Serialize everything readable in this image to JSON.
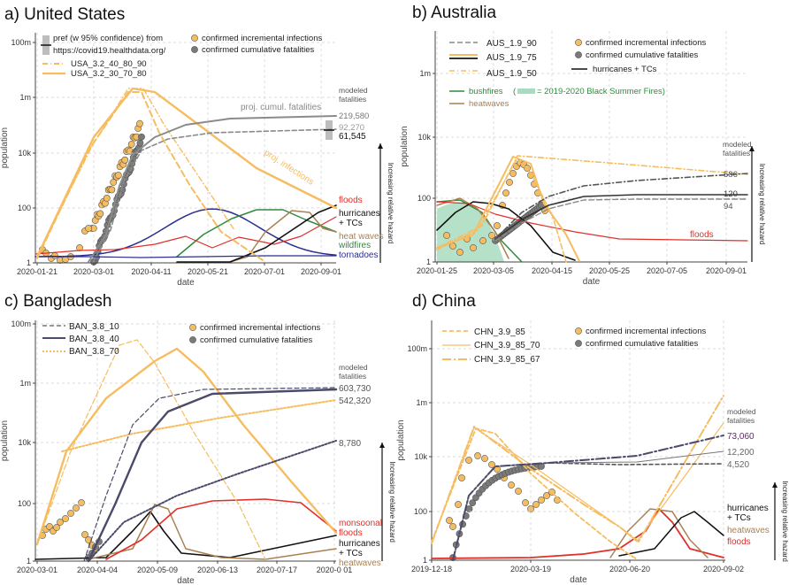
{
  "chart_data": [
    {
      "panel": "a",
      "title": "a) United States",
      "type": "line",
      "xlabel": "date",
      "ylabel": "population",
      "x_ticks": [
        "2020-01-21",
        "2020-03-01",
        "2020-04-11",
        "2020-05-21",
        "2020-07-01",
        "2020-09-01"
      ],
      "y_ticks": [
        "1",
        "100",
        "10k",
        "1m",
        "100m"
      ],
      "ylim": [
        1,
        300000000
      ],
      "grid": true,
      "log_y": true,
      "legend_left": [
        "pref (w 95% confidence) from",
        "https://covid19.healthdata.org/",
        "USA_3.2_40_80_90",
        "USA_3.2_30_70_80"
      ],
      "legend_right": [
        "confirmed incremental infections",
        "confirmed cumulative fatalities"
      ],
      "modeled_label": "modeled\nfatalities",
      "fatalities": [
        "219,580",
        "92,270",
        "61,545"
      ],
      "annotations": [
        "proj. cumul. fatalities",
        "proj. infections"
      ],
      "hazards": [
        "floods",
        "hurricanes\n+ TCs",
        "heat waves",
        "wildfires",
        "tornadoes"
      ],
      "hazard_axis_label": "Increasing relative hazard",
      "series": [
        {
          "name": "USA_3.2_30_70_80 infections",
          "x": [
            "2020-01-21",
            "2020-04-07",
            "2020-09-01"
          ],
          "y": [
            1,
            2000000,
            60
          ]
        },
        {
          "name": "USA_3.2_40_80_90 infections",
          "x": [
            "2020-01-21",
            "2020-04-01",
            "2020-06-05",
            "2020-06-23"
          ],
          "y": [
            1,
            1500000,
            30,
            1
          ]
        },
        {
          "name": "USA_3.2_30_70_80 fatalities",
          "x": [
            "2020-03-15",
            "2020-04-10",
            "2020-05-20",
            "2020-09-01"
          ],
          "y": [
            1,
            70000,
            200000,
            219580
          ]
        },
        {
          "name": "USA_3.2_40_80_90 fatalities",
          "x": [
            "2020-03-15",
            "2020-04-10",
            "2020-05-20",
            "2020-09-01"
          ],
          "y": [
            1,
            40000,
            85000,
            92270
          ]
        },
        {
          "name": "confirmed incremental infections",
          "x": [
            "2020-02-27",
            "2020-03-10",
            "2020-03-20",
            "2020-03-30",
            "2020-04-04"
          ],
          "y": [
            20,
            1000,
            30000,
            100000,
            80000
          ]
        },
        {
          "name": "confirmed cumulative fatalities",
          "x": [
            "2020-02-29",
            "2020-03-15",
            "2020-03-25",
            "2020-04-05",
            "2020-04-14"
          ],
          "y": [
            1,
            100,
            1500,
            10000,
            25000
          ]
        }
      ]
    },
    {
      "panel": "b",
      "title": "b) Australia",
      "type": "line",
      "xlabel": "date",
      "ylabel": "population",
      "x_ticks": [
        "2020-01-25",
        "2020-03-05",
        "2020-04-15",
        "2020-05-25",
        "2020-07-05",
        "2020-09-01"
      ],
      "y_ticks": [
        "1",
        "100",
        "10k",
        "1m"
      ],
      "ylim": [
        1,
        30000000
      ],
      "grid": true,
      "log_y": true,
      "legend_left": [
        "AUS_1.9_90",
        "AUS_1.9_75",
        "AUS_1.9_50"
      ],
      "legend_right": [
        "confirmed incremental infections",
        "confirmed cumulative fatalities",
        "hurricanes + TCs"
      ],
      "legend_hazards": [
        "bushfires",
        "(",
        "= 2019-2020 Black Summer Fires)",
        "heatwaves"
      ],
      "modeled_label": "modeled\nfatalities",
      "fatalities": [
        "586",
        "120",
        "94"
      ],
      "hazards": [
        "floods"
      ],
      "hazard_axis_label": "Increasing relative hazard"
    },
    {
      "panel": "c",
      "title": "c) Bangladesh",
      "type": "line",
      "xlabel": "date",
      "ylabel": "population",
      "x_ticks": [
        "2020-03-01",
        "2020-04-04",
        "2020-05-09",
        "2020-06-13",
        "2020-07-17",
        "2020-0 01"
      ],
      "y_ticks": [
        "1",
        "100",
        "10k",
        "1m",
        "100m"
      ],
      "ylim": [
        1,
        200000000
      ],
      "grid": true,
      "log_y": true,
      "legend_left": [
        "BAN_3.8_10",
        "BAN_3.8_40",
        "BAN_3.8_70"
      ],
      "legend_right": [
        "confirmed incremental infections",
        "confirmed cumulative fatalities"
      ],
      "modeled_label": "modeled\nfatalities",
      "fatalities": [
        "603,730",
        "542,320",
        "8,780"
      ],
      "hazards": [
        "monsoonal\nfloods",
        "hurricanes\n+ TCs",
        "heatwaves"
      ],
      "hazard_axis_label": "Increasing relative hazard"
    },
    {
      "panel": "d",
      "title": "d) China",
      "type": "line",
      "xlabel": "date",
      "ylabel": "population",
      "x_ticks": [
        "2019-12-18",
        "2020-03-19",
        "2020-06-20",
        "2020-09-02"
      ],
      "y_ticks": [
        "1",
        "100",
        "10k",
        "1m",
        "100m"
      ],
      "ylim": [
        1,
        300000000
      ],
      "grid": true,
      "log_y": true,
      "legend_left": [
        "CHN_3.9_85",
        "CHN_3.9_85_70",
        "CHN_3.9_85_67"
      ],
      "legend_right": [
        "confirmed incremental infections",
        "confirmed cumulative fatalities"
      ],
      "modeled_label": "modeled\nfatalities",
      "fatalities": [
        "73,060",
        "12,200",
        "4,520"
      ],
      "hazards": [
        "hurricanes\n+ TCs",
        "heatwaves",
        "floods"
      ],
      "hazard_axis_label": "Increasing relative hazard"
    }
  ],
  "colors": {
    "orange": "#f6bd60",
    "orange_dark": "#f4a64a",
    "gray": "#8a8a8a",
    "dark": "#4a4a6a",
    "red": "#e0302a",
    "green": "#2e8b3e",
    "blue": "#2b2f8f",
    "brown": "#a98052",
    "fatality_purple": "#5a2a6a"
  }
}
